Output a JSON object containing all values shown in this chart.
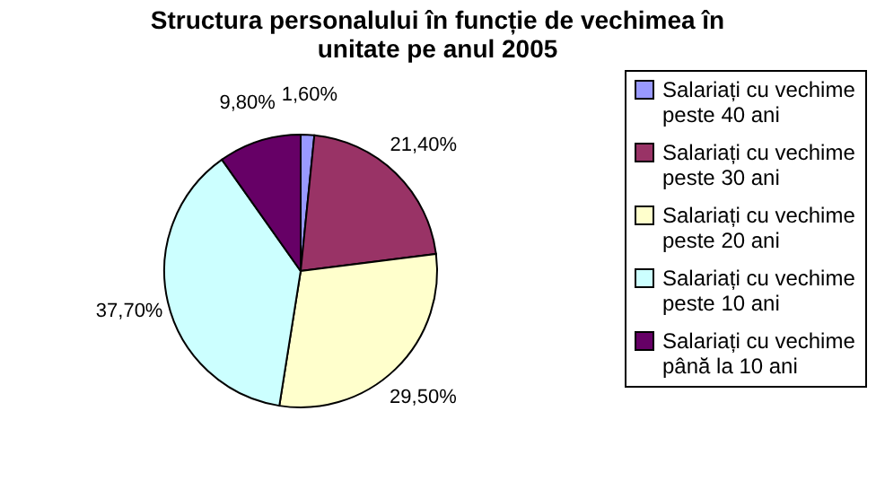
{
  "chart_data": {
    "type": "pie",
    "title": [
      "Structura personalului în funcție de vechimea în",
      "unitate pe anul 2005"
    ],
    "categories": [
      "Salariați cu vechime peste 40 ani",
      "Salariați cu vechime peste 30 ani",
      "Salariați cu vechime peste 20 ani",
      "Salariați cu vechime peste 10 ani",
      "Salariați cu vechime până la 10 ani"
    ],
    "values": [
      1.6,
      21.4,
      29.5,
      37.7,
      9.8
    ],
    "value_labels": [
      "1,60%",
      "21,40%",
      "29,50%",
      "37,70%",
      "9,80%"
    ],
    "colors": [
      "#9999ff",
      "#993366",
      "#ffffcc",
      "#ccffff",
      "#660066"
    ],
    "legend": "right"
  }
}
